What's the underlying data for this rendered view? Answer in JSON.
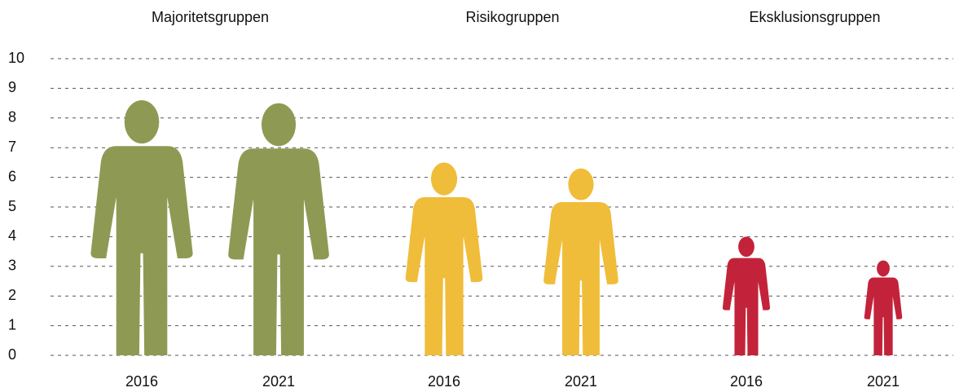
{
  "chart_data": {
    "type": "pictogram",
    "groups": [
      {
        "name": "Majoritetsgruppen",
        "color": "#8e9a54",
        "categories": [
          "2016",
          "2021"
        ],
        "values": [
          8.6,
          8.5
        ]
      },
      {
        "name": "Risikogruppen",
        "color": "#f0bd3a",
        "categories": [
          "2016",
          "2021"
        ],
        "values": [
          6.5,
          6.3
        ]
      },
      {
        "name": "Eksklusionsgruppen",
        "color": "#c3233a",
        "categories": [
          "2016",
          "2021"
        ],
        "values": [
          4.0,
          3.2
        ]
      }
    ],
    "ylim": [
      0,
      10
    ],
    "yticks": [
      0,
      1,
      2,
      3,
      4,
      5,
      6,
      7,
      8,
      9,
      10
    ],
    "grid": true
  }
}
